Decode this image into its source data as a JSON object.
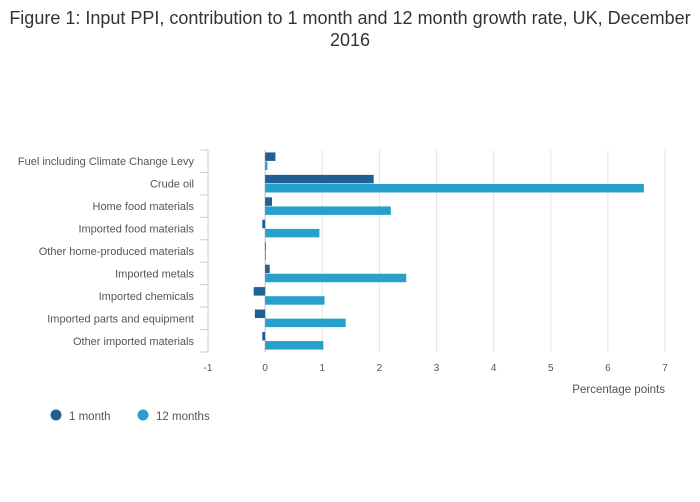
{
  "chart_data": {
    "type": "bar",
    "orientation": "horizontal",
    "title": "Figure 1: Input PPI, contribution to 1 month and 12 month growth rate, UK, December 2016",
    "xlabel": "Percentage points",
    "ylabel": "",
    "xlim": [
      -1,
      7
    ],
    "xticks": [
      -1,
      0,
      1,
      2,
      3,
      4,
      5,
      6,
      7
    ],
    "grid": true,
    "legend_position": "bottom-left",
    "categories": [
      "Fuel including Climate Change Levy",
      "Crude oil",
      "Home food materials",
      "Imported food materials",
      "Other home-produced materials",
      "Imported metals",
      "Imported chemicals",
      "Imported parts and equipment",
      "Other imported materials"
    ],
    "series": [
      {
        "name": "1 month",
        "color": "#206095",
        "values": [
          0.18,
          1.9,
          0.12,
          -0.05,
          0.0,
          0.08,
          -0.2,
          -0.18,
          -0.05
        ]
      },
      {
        "name": "12 months",
        "color": "#27a0cc",
        "values": [
          0.04,
          6.63,
          2.2,
          0.95,
          0.01,
          2.47,
          1.04,
          1.41,
          1.02
        ]
      }
    ]
  }
}
